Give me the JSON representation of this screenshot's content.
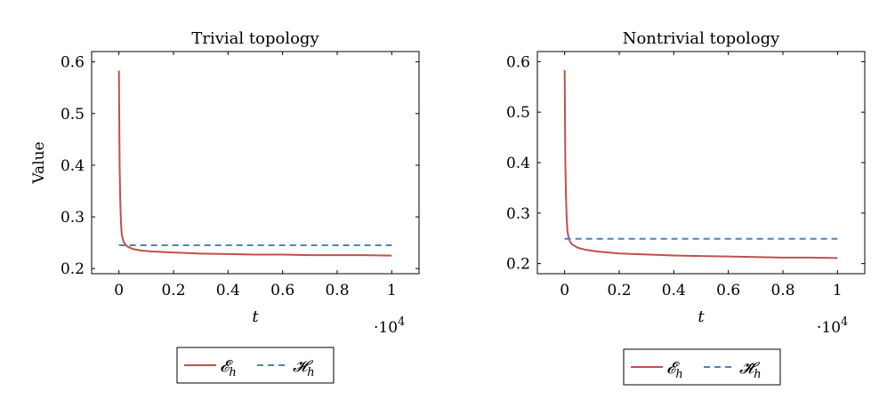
{
  "chart_data": [
    {
      "type": "line",
      "title": "Trivial topology",
      "xlabel": "t",
      "ylabel": "Value",
      "x_multiplier": "·10",
      "x_multiplier_exp": "4",
      "xlim": [
        -0.1,
        1.1
      ],
      "ylim": [
        0.19,
        0.62
      ],
      "xticks": [
        0,
        0.2,
        0.4,
        0.6,
        0.8,
        1
      ],
      "xtick_labels": [
        "0",
        "0.2",
        "0.4",
        "0.6",
        "0.8",
        "1"
      ],
      "yticks": [
        0.2,
        0.3,
        0.4,
        0.5,
        0.6
      ],
      "ytick_labels": [
        "0.2",
        "0.3",
        "0.4",
        "0.5",
        "0.6"
      ],
      "legend_position": "below",
      "series": [
        {
          "name": "𝓔",
          "name_sub": "h",
          "color": "#c0504d",
          "style": "solid",
          "x": [
            0,
            0.0025,
            0.005,
            0.0075,
            0.01,
            0.015,
            0.02,
            0.03,
            0.05,
            0.08,
            0.12,
            0.2,
            0.3,
            0.4,
            0.5,
            0.6,
            0.7,
            0.8,
            0.9,
            1.0
          ],
          "y": [
            0.583,
            0.4,
            0.33,
            0.29,
            0.268,
            0.255,
            0.249,
            0.243,
            0.238,
            0.235,
            0.233,
            0.231,
            0.229,
            0.228,
            0.227,
            0.227,
            0.226,
            0.226,
            0.226,
            0.225
          ]
        },
        {
          "name": "𝓗",
          "name_sub": "h",
          "color": "#4f81bd",
          "style": "dashed",
          "x": [
            0,
            1.0
          ],
          "y": [
            0.245,
            0.245
          ]
        }
      ]
    },
    {
      "type": "line",
      "title": "Nontrivial topology",
      "xlabel": "t",
      "ylabel": "",
      "x_multiplier": "·10",
      "x_multiplier_exp": "4",
      "xlim": [
        -0.1,
        1.1
      ],
      "ylim": [
        0.18,
        0.62
      ],
      "xticks": [
        0,
        0.2,
        0.4,
        0.6,
        0.8,
        1
      ],
      "xtick_labels": [
        "0",
        "0.2",
        "0.4",
        "0.6",
        "0.8",
        "1"
      ],
      "yticks": [
        0.2,
        0.3,
        0.4,
        0.5,
        0.6
      ],
      "ytick_labels": [
        "0.2",
        "0.3",
        "0.4",
        "0.5",
        "0.6"
      ],
      "legend_position": "below",
      "series": [
        {
          "name": "𝓔",
          "name_sub": "h",
          "color": "#c0504d",
          "style": "solid",
          "x": [
            0,
            0.0025,
            0.005,
            0.0075,
            0.01,
            0.015,
            0.02,
            0.03,
            0.05,
            0.08,
            0.12,
            0.2,
            0.3,
            0.4,
            0.5,
            0.6,
            0.7,
            0.8,
            0.9,
            1.0
          ],
          "y": [
            0.583,
            0.4,
            0.33,
            0.29,
            0.265,
            0.25,
            0.243,
            0.237,
            0.231,
            0.227,
            0.224,
            0.22,
            0.218,
            0.216,
            0.215,
            0.214,
            0.213,
            0.212,
            0.212,
            0.211
          ]
        },
        {
          "name": "𝓗̃",
          "name_sub": "h",
          "color": "#4f81bd",
          "style": "dashed",
          "x": [
            0,
            1.0
          ],
          "y": [
            0.249,
            0.249
          ]
        }
      ]
    }
  ]
}
